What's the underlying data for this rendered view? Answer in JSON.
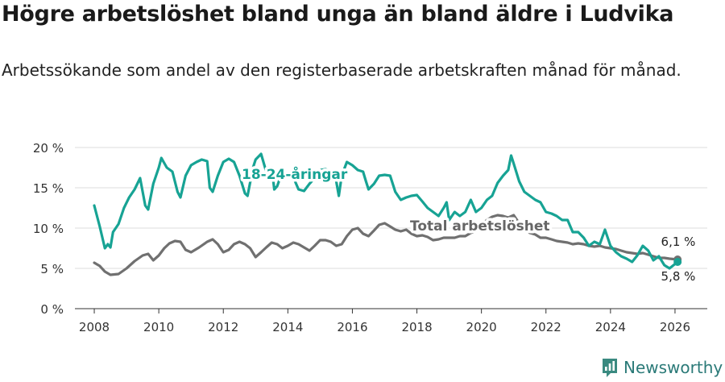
{
  "title": "Högre arbetslöshet bland unga än bland äldre i Ludvika",
  "subtitle": "Arbetssökande som andel av den registerbaserade arbetskraften månad för månad.",
  "brand": {
    "name": "Newsworthy",
    "icon": "bar-chart-logo-icon",
    "color": "#3a8a80"
  },
  "chart_data": {
    "type": "line",
    "title": "Högre arbetslöshet bland unga än bland äldre i Ludvika",
    "xlabel": "",
    "ylabel": "",
    "xlim": [
      2007.4,
      2027.0
    ],
    "ylim": [
      0,
      20
    ],
    "grid": true,
    "x_ticks": [
      2008,
      2010,
      2012,
      2014,
      2016,
      2018,
      2020,
      2022,
      2024,
      2026
    ],
    "x_tick_labels": [
      "2008",
      "2010",
      "2012",
      "2014",
      "2016",
      "2018",
      "2020",
      "2022",
      "2024",
      "2026"
    ],
    "y_ticks": [
      0,
      5,
      10,
      15,
      20
    ],
    "y_tick_labels": [
      "0 %",
      "5 %",
      "10 %",
      "15 %",
      "20 %"
    ],
    "series": [
      {
        "name": "Total arbetslöshet",
        "label": "Total arbetslöshet",
        "color": "#707070",
        "end_label": "6,1 %",
        "points": [
          [
            2008.0,
            5.7
          ],
          [
            2008.17,
            5.3
          ],
          [
            2008.33,
            4.6
          ],
          [
            2008.5,
            4.2
          ],
          [
            2008.75,
            4.3
          ],
          [
            2009.0,
            5.0
          ],
          [
            2009.25,
            5.9
          ],
          [
            2009.5,
            6.6
          ],
          [
            2009.67,
            6.8
          ],
          [
            2009.83,
            6.0
          ],
          [
            2010.0,
            6.6
          ],
          [
            2010.17,
            7.5
          ],
          [
            2010.33,
            8.1
          ],
          [
            2010.5,
            8.4
          ],
          [
            2010.67,
            8.3
          ],
          [
            2010.83,
            7.3
          ],
          [
            2011.0,
            7.0
          ],
          [
            2011.25,
            7.6
          ],
          [
            2011.5,
            8.3
          ],
          [
            2011.67,
            8.6
          ],
          [
            2011.83,
            8.0
          ],
          [
            2012.0,
            7.0
          ],
          [
            2012.17,
            7.3
          ],
          [
            2012.33,
            8.0
          ],
          [
            2012.5,
            8.3
          ],
          [
            2012.67,
            8.0
          ],
          [
            2012.83,
            7.5
          ],
          [
            2013.0,
            6.4
          ],
          [
            2013.17,
            7.0
          ],
          [
            2013.33,
            7.6
          ],
          [
            2013.5,
            8.2
          ],
          [
            2013.67,
            8.0
          ],
          [
            2013.83,
            7.5
          ],
          [
            2014.0,
            7.8
          ],
          [
            2014.17,
            8.2
          ],
          [
            2014.33,
            8.0
          ],
          [
            2014.5,
            7.6
          ],
          [
            2014.67,
            7.2
          ],
          [
            2014.83,
            7.8
          ],
          [
            2015.0,
            8.5
          ],
          [
            2015.17,
            8.5
          ],
          [
            2015.33,
            8.3
          ],
          [
            2015.5,
            7.8
          ],
          [
            2015.67,
            8.0
          ],
          [
            2015.83,
            9.0
          ],
          [
            2016.0,
            9.8
          ],
          [
            2016.17,
            10.0
          ],
          [
            2016.33,
            9.3
          ],
          [
            2016.5,
            9.0
          ],
          [
            2016.67,
            9.7
          ],
          [
            2016.83,
            10.4
          ],
          [
            2017.0,
            10.6
          ],
          [
            2017.17,
            10.2
          ],
          [
            2017.33,
            9.8
          ],
          [
            2017.5,
            9.6
          ],
          [
            2017.67,
            9.8
          ],
          [
            2017.83,
            9.3
          ],
          [
            2018.0,
            9.0
          ],
          [
            2018.17,
            9.1
          ],
          [
            2018.33,
            8.9
          ],
          [
            2018.5,
            8.5
          ],
          [
            2018.67,
            8.6
          ],
          [
            2018.83,
            8.8
          ],
          [
            2019.0,
            8.8
          ],
          [
            2019.17,
            8.8
          ],
          [
            2019.33,
            9.0
          ],
          [
            2019.5,
            9.0
          ],
          [
            2019.67,
            9.4
          ],
          [
            2019.83,
            9.6
          ],
          [
            2020.0,
            10.4
          ],
          [
            2020.17,
            11.0
          ],
          [
            2020.33,
            11.4
          ],
          [
            2020.5,
            11.6
          ],
          [
            2020.67,
            11.5
          ],
          [
            2020.83,
            11.3
          ],
          [
            2021.0,
            11.6
          ],
          [
            2021.17,
            10.6
          ],
          [
            2021.33,
            9.8
          ],
          [
            2021.5,
            9.4
          ],
          [
            2021.67,
            9.2
          ],
          [
            2021.83,
            8.8
          ],
          [
            2022.0,
            8.8
          ],
          [
            2022.17,
            8.6
          ],
          [
            2022.33,
            8.4
          ],
          [
            2022.5,
            8.3
          ],
          [
            2022.67,
            8.2
          ],
          [
            2022.83,
            8.0
          ],
          [
            2023.0,
            8.1
          ],
          [
            2023.17,
            8.0
          ],
          [
            2023.33,
            7.8
          ],
          [
            2023.5,
            7.7
          ],
          [
            2023.67,
            7.8
          ],
          [
            2023.83,
            7.6
          ],
          [
            2024.0,
            7.5
          ],
          [
            2024.17,
            7.4
          ],
          [
            2024.33,
            7.2
          ],
          [
            2024.5,
            7.0
          ],
          [
            2024.67,
            6.9
          ],
          [
            2024.83,
            6.8
          ],
          [
            2025.0,
            6.9
          ],
          [
            2025.17,
            6.7
          ],
          [
            2025.33,
            6.5
          ],
          [
            2025.5,
            6.3
          ],
          [
            2025.67,
            6.3
          ],
          [
            2025.83,
            6.2
          ],
          [
            2026.08,
            6.1
          ]
        ]
      },
      {
        "name": "18-24-åringar",
        "label": "18-24-åringar",
        "color": "#17a394",
        "end_label": "5,8 %",
        "points": [
          [
            2008.0,
            12.8
          ],
          [
            2008.17,
            10.2
          ],
          [
            2008.33,
            7.5
          ],
          [
            2008.42,
            8.0
          ],
          [
            2008.5,
            7.6
          ],
          [
            2008.58,
            9.5
          ],
          [
            2008.75,
            10.5
          ],
          [
            2008.92,
            12.5
          ],
          [
            2009.08,
            13.8
          ],
          [
            2009.25,
            14.8
          ],
          [
            2009.42,
            16.2
          ],
          [
            2009.58,
            12.8
          ],
          [
            2009.67,
            12.3
          ],
          [
            2009.83,
            15.5
          ],
          [
            2010.0,
            17.5
          ],
          [
            2010.08,
            18.7
          ],
          [
            2010.25,
            17.5
          ],
          [
            2010.42,
            17.0
          ],
          [
            2010.58,
            14.5
          ],
          [
            2010.67,
            13.8
          ],
          [
            2010.83,
            16.5
          ],
          [
            2011.0,
            17.8
          ],
          [
            2011.17,
            18.2
          ],
          [
            2011.33,
            18.5
          ],
          [
            2011.5,
            18.3
          ],
          [
            2011.58,
            15.0
          ],
          [
            2011.67,
            14.5
          ],
          [
            2011.83,
            16.5
          ],
          [
            2012.0,
            18.2
          ],
          [
            2012.17,
            18.6
          ],
          [
            2012.33,
            18.2
          ],
          [
            2012.5,
            16.5
          ],
          [
            2012.67,
            14.3
          ],
          [
            2012.75,
            14.0
          ],
          [
            2012.92,
            17.5
          ],
          [
            2013.0,
            18.5
          ],
          [
            2013.17,
            19.2
          ],
          [
            2013.33,
            17.0
          ],
          [
            2013.5,
            17.5
          ],
          [
            2013.58,
            14.8
          ],
          [
            2013.67,
            15.2
          ],
          [
            2013.83,
            17.0
          ],
          [
            2014.0,
            16.8
          ],
          [
            2014.17,
            16.3
          ],
          [
            2014.33,
            14.8
          ],
          [
            2014.5,
            14.6
          ],
          [
            2014.67,
            15.5
          ],
          [
            2014.83,
            16.2
          ],
          [
            2015.0,
            17.2
          ],
          [
            2015.17,
            17.3
          ],
          [
            2015.33,
            17.0
          ],
          [
            2015.5,
            15.8
          ],
          [
            2015.58,
            14.0
          ],
          [
            2015.67,
            16.5
          ],
          [
            2015.83,
            18.2
          ],
          [
            2016.0,
            17.8
          ],
          [
            2016.17,
            17.2
          ],
          [
            2016.33,
            17.0
          ],
          [
            2016.42,
            15.8
          ],
          [
            2016.5,
            14.8
          ],
          [
            2016.67,
            15.5
          ],
          [
            2016.83,
            16.5
          ],
          [
            2017.0,
            16.6
          ],
          [
            2017.17,
            16.5
          ],
          [
            2017.33,
            14.5
          ],
          [
            2017.5,
            13.5
          ],
          [
            2017.67,
            13.8
          ],
          [
            2017.83,
            14.0
          ],
          [
            2018.0,
            14.1
          ],
          [
            2018.17,
            13.3
          ],
          [
            2018.33,
            12.5
          ],
          [
            2018.5,
            12.0
          ],
          [
            2018.67,
            11.5
          ],
          [
            2018.83,
            12.5
          ],
          [
            2018.92,
            13.2
          ],
          [
            2019.0,
            11.0
          ],
          [
            2019.17,
            12.0
          ],
          [
            2019.33,
            11.5
          ],
          [
            2019.5,
            12.0
          ],
          [
            2019.67,
            13.5
          ],
          [
            2019.83,
            12.0
          ],
          [
            2020.0,
            12.5
          ],
          [
            2020.17,
            13.5
          ],
          [
            2020.33,
            14.0
          ],
          [
            2020.5,
            15.6
          ],
          [
            2020.67,
            16.5
          ],
          [
            2020.83,
            17.2
          ],
          [
            2020.92,
            19.0
          ],
          [
            2021.0,
            18.0
          ],
          [
            2021.17,
            15.8
          ],
          [
            2021.33,
            14.5
          ],
          [
            2021.5,
            14.0
          ],
          [
            2021.67,
            13.5
          ],
          [
            2021.83,
            13.2
          ],
          [
            2022.0,
            12.0
          ],
          [
            2022.17,
            11.8
          ],
          [
            2022.33,
            11.5
          ],
          [
            2022.5,
            11.0
          ],
          [
            2022.67,
            11.0
          ],
          [
            2022.83,
            9.5
          ],
          [
            2023.0,
            9.5
          ],
          [
            2023.17,
            8.8
          ],
          [
            2023.33,
            7.8
          ],
          [
            2023.5,
            8.3
          ],
          [
            2023.67,
            8.0
          ],
          [
            2023.83,
            9.8
          ],
          [
            2024.0,
            7.8
          ],
          [
            2024.17,
            7.0
          ],
          [
            2024.33,
            6.5
          ],
          [
            2024.5,
            6.2
          ],
          [
            2024.67,
            5.8
          ],
          [
            2024.83,
            6.6
          ],
          [
            2025.0,
            7.8
          ],
          [
            2025.17,
            7.2
          ],
          [
            2025.33,
            6.0
          ],
          [
            2025.5,
            6.5
          ],
          [
            2025.67,
            5.4
          ],
          [
            2025.83,
            5.0
          ],
          [
            2026.08,
            5.8
          ]
        ]
      }
    ]
  }
}
